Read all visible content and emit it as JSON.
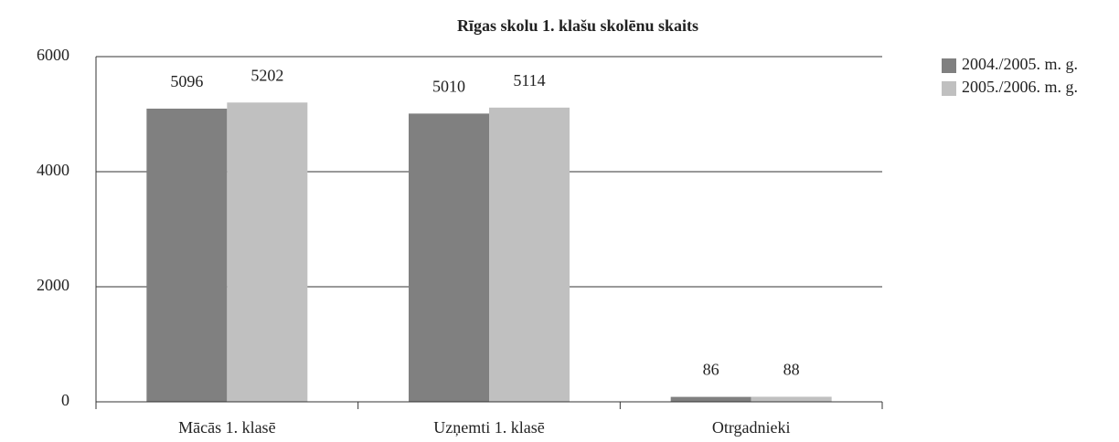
{
  "chart_data": {
    "type": "bar",
    "title": "Rīgas skolu 1. klašu skolēnu skaits",
    "categories": [
      "Mācās 1. klasē",
      "Uzņemti 1. klasē",
      "Otrgadnieki"
    ],
    "series": [
      {
        "name": "2004./2005. m. g.",
        "color": "#808080",
        "values": [
          5096,
          5010,
          86
        ]
      },
      {
        "name": "2005./2006. m. g.",
        "color": "#c0c0c0",
        "values": [
          5202,
          5114,
          88
        ]
      }
    ],
    "ylim": [
      0,
      6000
    ],
    "yticks": [
      0,
      2000,
      4000,
      6000
    ],
    "grid": true,
    "legend": "right"
  }
}
